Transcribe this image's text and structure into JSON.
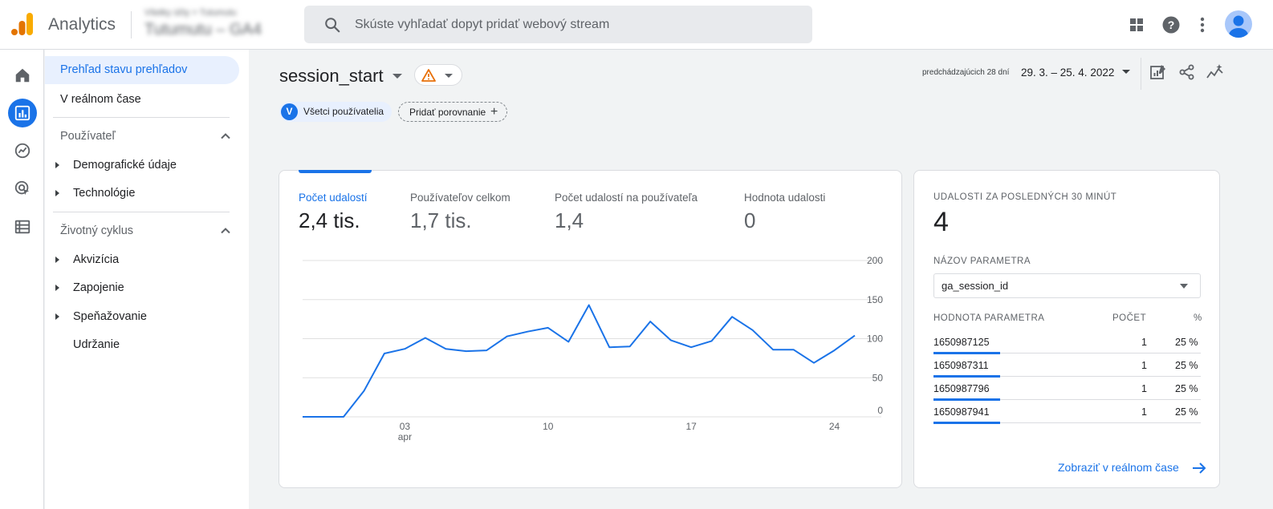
{
  "header": {
    "app_title": "Analytics",
    "account_small": "Všetky účty > Tutumutu",
    "account_big": "Tutumutu – GA4",
    "search_placeholder": "Skúste vyhľadať dopyt pridať webový stream"
  },
  "icons": {
    "apps": "apps-grid-icon",
    "help": "help-icon",
    "more": "more-vert-icon",
    "account": "account-avatar-icon"
  },
  "nav": {
    "overview": "Prehľad stavu prehľadov",
    "realtime": "V reálnom čase",
    "user_section": "Používateľ",
    "demographics": "Demografické údaje",
    "technology": "Technológie",
    "lifecycle_section": "Životný cyklus",
    "acquisition": "Akvizícia",
    "engagement": "Zapojenie",
    "monetization": "Speňažovanie",
    "retention": "Udržanie"
  },
  "report": {
    "title": "session_start",
    "segment_badge": "V",
    "segment_label": "Všetci používatelia",
    "add_comparison": "Pridať porovnanie",
    "date_prefix": "predchádzajúcich 28 dní",
    "date_range": "29. 3. – 25. 4. 2022"
  },
  "metrics": [
    {
      "label": "Počet udalostí",
      "value": "2,4 tis."
    },
    {
      "label": "Používateľov celkom",
      "value": "1,7 tis."
    },
    {
      "label": "Počet udalostí na používateľa",
      "value": "1,4"
    },
    {
      "label": "Hodnota udalosti",
      "value": "0"
    }
  ],
  "chart_data": {
    "type": "line",
    "x_start": "2022-03-29",
    "x_end": "2022-04-25",
    "x_ticks": [
      {
        "label": "03",
        "sublabel": "apr",
        "date": "2022-04-03"
      },
      {
        "label": "10",
        "sublabel": "",
        "date": "2022-04-10"
      },
      {
        "label": "17",
        "sublabel": "",
        "date": "2022-04-17"
      },
      {
        "label": "24",
        "sublabel": "",
        "date": "2022-04-24"
      }
    ],
    "y_ticks": [
      "200",
      "150",
      "100",
      "50",
      "0"
    ],
    "ylim": [
      0,
      200
    ],
    "grid": true,
    "color": "#1a73e8",
    "values": [
      0,
      0,
      0,
      33,
      81,
      87,
      101,
      87,
      84,
      85,
      103,
      109,
      114,
      96,
      143,
      89,
      90,
      122,
      98,
      89,
      97,
      128,
      111,
      86,
      86,
      69,
      85,
      104
    ]
  },
  "realtime": {
    "heading": "UDALOSTI ZA POSLEDNÝCH 30 MINÚT",
    "count": "4",
    "param_name_label": "NÁZOV PARAMETRA",
    "param_selected": "ga_session_id",
    "col_value": "HODNOTA PARAMETRA",
    "col_count": "POČET",
    "col_pct": "%",
    "rows": [
      {
        "value": "1650987125",
        "count": "1",
        "pct": "25 %"
      },
      {
        "value": "1650987311",
        "count": "1",
        "pct": "25 %"
      },
      {
        "value": "1650987796",
        "count": "1",
        "pct": "25 %"
      },
      {
        "value": "1650987941",
        "count": "1",
        "pct": "25 %"
      }
    ],
    "link": "Zobraziť v reálnom čase"
  }
}
